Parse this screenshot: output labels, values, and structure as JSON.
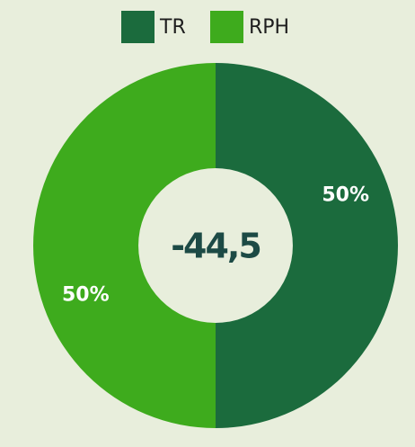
{
  "chart_data": {
    "type": "pie",
    "categories": [
      "TR",
      "RPH"
    ],
    "values": [
      50,
      50
    ],
    "value_labels": [
      "50%",
      "50%"
    ],
    "colors": [
      "#1b6b3d",
      "#3eab1d"
    ],
    "center_label": "-44,5",
    "legend": "top"
  }
}
